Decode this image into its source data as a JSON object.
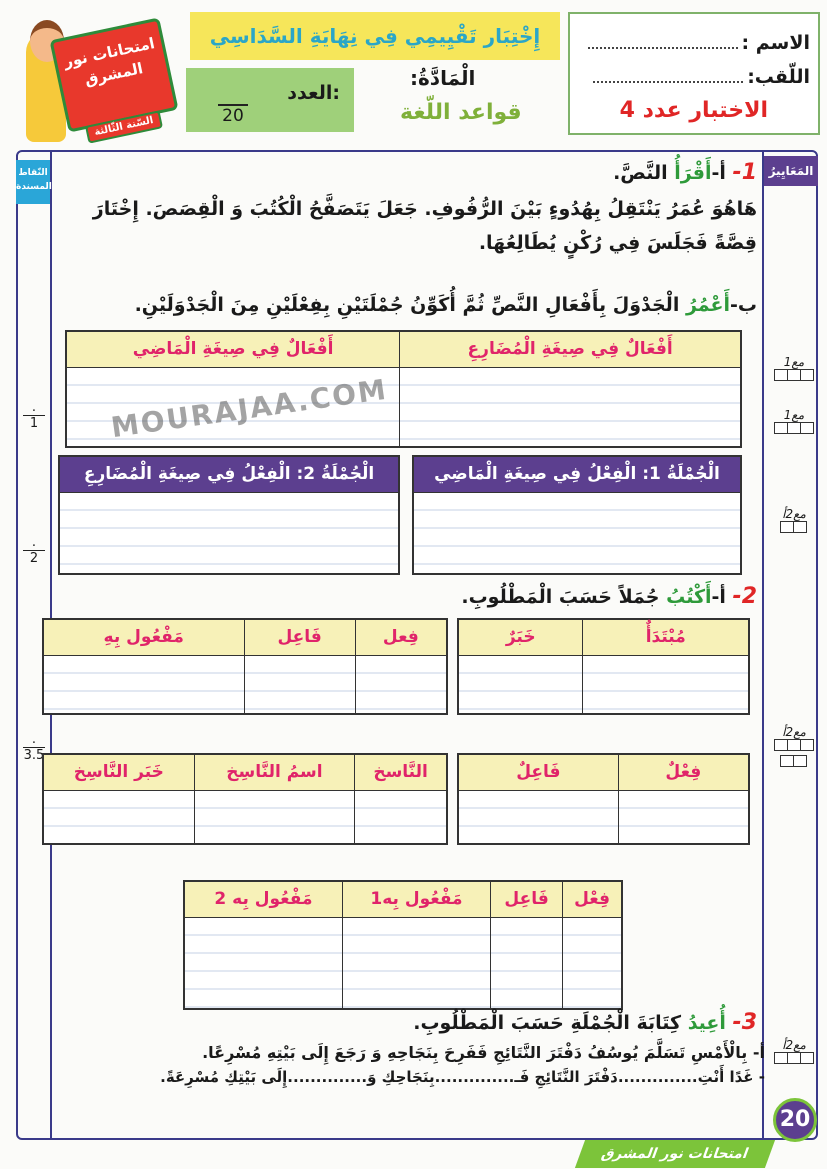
{
  "header": {
    "name_label": "الاسم :",
    "surname_label": "اللّقب:",
    "test_number": "الاختبار عدد 4",
    "title": "إِخْتِبَار تَقْيِيمِي فِي نِهَايَةِ السَّدَاسِي",
    "subject_label": "الْمَادَّةُ:",
    "subject": "قواعد اللّغة",
    "score_label": "العدد:",
    "score_denominator": "20",
    "logo_text": "امتحانات نور المشرق",
    "logo_year": "السّنة الثّالثة"
  },
  "columns": {
    "criteria": "المَعَايِيرُ",
    "points": "النّقاط المسندة"
  },
  "points": [
    "1",
    "2",
    "3.5"
  ],
  "criteria_marks": [
    "مع1",
    "مع1",
    "مع2أ",
    "مع2أ",
    "مع2أ"
  ],
  "watermark": "MOURAJAA.COM",
  "section1": {
    "num": "1-",
    "a": "أ-",
    "verb_a": "أَقْرَأُ",
    "rest_a": " النَّصَّ.",
    "text": "هَاهُوَ عُمَرُ يَنْتَقِلُ بِهُدُوءٍ بَيْنَ الرُّفُوفِ. جَعَلَ يَتَصَفَّحُ الْكُتُبَ وَ الْقِصَصَ. إِخْتَارَ قِصَّةً فَجَلَسَ فِي رُكْنٍ يُطَالِعُهَا.",
    "b": "ب-",
    "verb_b": "أَعْمُرُ",
    "rest_b": " الْجَدْوَلَ بِأَفْعَالِ النَّصِّ ثُمَّ أُكَوِّنُ جُمْلَتَيْنِ بِفِعْلَيْنِ مِنَ الْجَدْوَلَيْنِ.",
    "table1": [
      "أَفْعَالٌ فِي صِيغَةِ الْمُضَارِعِ",
      "أَفْعَالٌ فِي صِيغَةِ الْمَاضِي"
    ],
    "table2a": "الْجُمْلَةُ 1: الْفِعْلُ فِي صِيغَةِ الْمَاضِي",
    "table2b": "الْجُمْلَةُ 2: الْفِعْلُ فِي صِيغَةِ الْمُضَارِعِ"
  },
  "section2": {
    "num": "2-",
    "a": "أ-",
    "verb": "أَكْتُبُ",
    "rest": " جُمَلاً حَسَبَ الْمَطْلُوبِ.",
    "t1": [
      "مُبْتَدَأٌ",
      "خَبَرٌ"
    ],
    "t2": [
      "فِعل",
      "فَاعِل",
      "مَفْعُول بِهِ"
    ],
    "t3": [
      "فِعْلٌ",
      "فَاعِلٌ"
    ],
    "t4": [
      "النَّاسخ",
      "اسمُ النَّاسِخ",
      "خَبَر النَّاسِخ"
    ],
    "t5": [
      "فِعْل",
      "فَاعِل",
      "مَفْعُول بِه1",
      "مَفْعُول بِه 2"
    ]
  },
  "section3": {
    "num": "3-",
    "verb": "أُعِيدُ",
    "rest": " كِتَابَةَ الْجُمْلَةِ حَسَبَ الْمَطْلُوبِ.",
    "sentence": "أ- بِالْأَمْسِ تَسَلَّمَ يُوسُفُ دَفْتَرَ النَّتَائِجِ فَفَرِحَ بِنَجَاحِهِ وَ رَجَعَ إِلَى بَيْتِهِ مُسْرِعًا.",
    "fill": "- غَدًا أَنْتِ..............دَفْتَرَ النَّتَائِجِ فَـ..............بِنَجَاحِكِ وَ..............إِلَى بَيْتِكِ مُسْرِعَةً."
  },
  "footer": {
    "page": "20",
    "brand": "امتحانات نور المشرق"
  }
}
